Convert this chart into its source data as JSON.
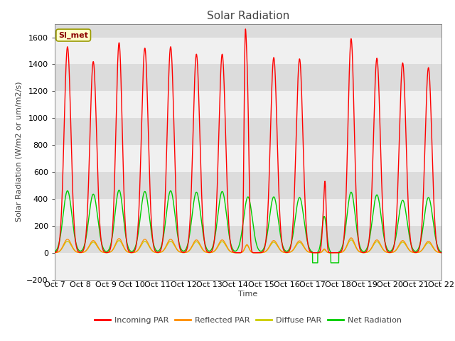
{
  "title": "Solar Radiation",
  "ylabel": "Solar Radiation (W/m2 or um/m2/s)",
  "xlabel": "Time",
  "ylim": [
    -200,
    1700
  ],
  "yticks": [
    -200,
    0,
    200,
    400,
    600,
    800,
    1000,
    1200,
    1400,
    1600
  ],
  "n_days": 15,
  "xtick_labels": [
    "Oct 7",
    "Oct 8",
    "Oct 9",
    "Oct 10",
    "Oct 11",
    "Oct 12",
    "Oct 13",
    "Oct 14",
    "Oct 15",
    "Oct 16",
    "Oct 17",
    "Oct 18",
    "Oct 19",
    "Oct 20",
    "Oct 21",
    "Oct 22"
  ],
  "station_label": "SI_met",
  "colors": {
    "incoming": "#FF0000",
    "reflected": "#FF8C00",
    "diffuse": "#CCCC00",
    "net": "#00CC00"
  },
  "legend_labels": [
    "Incoming PAR",
    "Reflected PAR",
    "Diffuse PAR",
    "Net Radiation"
  ],
  "title_fontsize": 11,
  "axis_label_fontsize": 8,
  "tick_fontsize": 8,
  "background_color": "#FFFFFF",
  "plot_bg_color": "#DCDCDC",
  "band_color": "#F0F0F0",
  "grid_color": "#FFFFFF"
}
